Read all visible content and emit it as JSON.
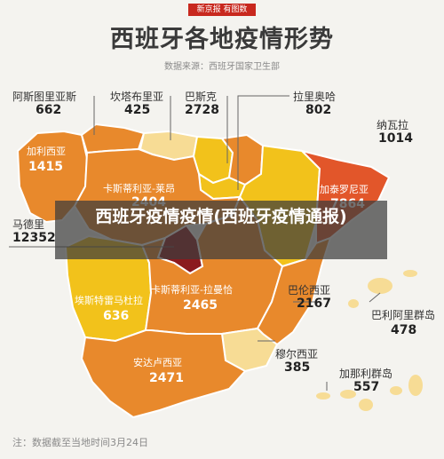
{
  "header": {
    "logo_text": "新京报 有图数",
    "title": "西班牙各地疫情形势",
    "source": "数据来源：西班牙国家卫生部"
  },
  "regions": {
    "asturias": {
      "name": "阿斯图里亚斯",
      "value": "662"
    },
    "cantabria": {
      "name": "坎塔布里亚",
      "value": "425"
    },
    "basque": {
      "name": "巴斯克",
      "value": "2728"
    },
    "larioja": {
      "name": "拉里奥哈",
      "value": "802"
    },
    "navarra": {
      "name": "纳瓦拉",
      "value": "1014"
    },
    "galicia": {
      "name": "加利西亚",
      "value": "1415"
    },
    "castilla_leon": {
      "name": "卡斯蒂利亚-莱昂",
      "value": "2404"
    },
    "catalonia": {
      "name": "加泰罗尼亚",
      "value": "7864"
    },
    "madrid": {
      "name": "马德里",
      "value": "12352"
    },
    "extremadura": {
      "name": "埃斯特雷马杜拉",
      "value": "636"
    },
    "castilla_mancha": {
      "name": "卡斯蒂利亚-拉曼恰",
      "value": "2465"
    },
    "valencia": {
      "name": "巴伦西亚",
      "value": "2167"
    },
    "balearic": {
      "name": "巴利阿里群岛",
      "value": "478"
    },
    "murcia": {
      "name": "穆尔西亚",
      "value": "385"
    },
    "andalucia": {
      "name": "安达卢西亚",
      "value": "2471"
    },
    "canary": {
      "name": "加那利群岛",
      "value": "557"
    }
  },
  "overlay": {
    "banner_text": "西班牙疫情疫情(西班牙疫情通报)"
  },
  "footer": {
    "note": "注：数据截至当地时间3月24日"
  },
  "colors": {
    "high": "#8b1a1e",
    "upper": "#e2562a",
    "mid": "#e8892c",
    "low": "#f2c21b",
    "lowest": "#f7dc95"
  }
}
